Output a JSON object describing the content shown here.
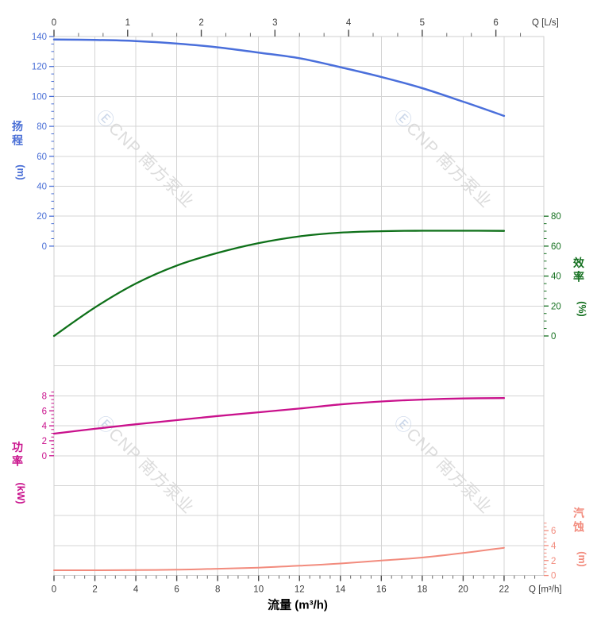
{
  "watermark": {
    "logo_char": "Ⓔ",
    "text": "CNP 南方泵业",
    "logo_color": "#ccd8ea",
    "text_color": "#dcdcdc"
  },
  "chart_data": {
    "type": "line",
    "title": "",
    "x_unit_bottom": "m³/h",
    "x_unit_top": "L/s",
    "x": [
      0,
      2,
      4,
      6,
      8,
      10,
      12,
      14,
      16,
      18,
      20,
      22
    ],
    "series": [
      {
        "name": "扬程",
        "axis": "head",
        "color": "#4a6fdb",
        "width": 2.5,
        "values": [
          138,
          137.7,
          137,
          135.3,
          132.8,
          129.3,
          125.5,
          119.5,
          113,
          105.5,
          96.5,
          87
        ]
      },
      {
        "name": "效率",
        "axis": "eff",
        "color": "#0e7019",
        "width": 2.3,
        "values": [
          0,
          19,
          35,
          47,
          55.5,
          62,
          66.5,
          69,
          70,
          70.3,
          70.3,
          70.2
        ]
      },
      {
        "name": "功率",
        "axis": "power",
        "color": "#c9118c",
        "width": 2.3,
        "values": [
          2.95,
          3.6,
          4.2,
          4.75,
          5.3,
          5.8,
          6.3,
          6.85,
          7.25,
          7.5,
          7.65,
          7.7
        ]
      },
      {
        "name": "汽蚀",
        "axis": "npsh",
        "color": "#f28b7d",
        "width": 2.0,
        "values": [
          0.7,
          0.7,
          0.72,
          0.78,
          0.9,
          1.05,
          1.3,
          1.6,
          2.0,
          2.4,
          3.0,
          3.7
        ]
      }
    ],
    "axes": {
      "top": {
        "unit_label": "Q [L/s]",
        "ticks": [
          0,
          1,
          2,
          3,
          4,
          5,
          6
        ],
        "minor_divisions": 3,
        "factor_to_bottom": 3.6,
        "color": "#3c3c3c"
      },
      "bottom": {
        "title": "流量 (m³/h)",
        "unit_label": "Q [m³/h]",
        "ticks": [
          0,
          2,
          4,
          6,
          8,
          10,
          12,
          14,
          16,
          18,
          20,
          22
        ],
        "minor": [
          0.5,
          23.5,
          0.5
        ],
        "range": [
          0,
          23.94
        ],
        "color": "#3c3c3c",
        "title_color": "#000000"
      },
      "head": {
        "title": "扬程",
        "unit": "(m)",
        "side": "left",
        "ticks": [
          0,
          20,
          40,
          60,
          80,
          100,
          120,
          140
        ],
        "minor": [
          5,
          135,
          5
        ],
        "range": [
          0,
          140
        ],
        "color": "#4a6fd6"
      },
      "eff": {
        "title": "效率",
        "unit": "(%)",
        "side": "right",
        "ticks": [
          0,
          20,
          40,
          60,
          80
        ],
        "minor": [
          5,
          75,
          5
        ],
        "range": [
          0,
          80
        ],
        "color": "#157020"
      },
      "power": {
        "title": "功率",
        "unit": "(kW)",
        "side": "left",
        "ticks": [
          0,
          2,
          4,
          6,
          8
        ],
        "minor": [
          0.5,
          8.5,
          0.5
        ],
        "range": [
          0,
          8
        ],
        "color": "#c9118c"
      },
      "npsh": {
        "title": "汽蚀",
        "unit": "(m)",
        "side": "right",
        "ticks": [
          0,
          2,
          4,
          6
        ],
        "minor": [
          0.5,
          7,
          0.5
        ],
        "range": [
          0,
          7
        ],
        "color": "#f28b7d"
      }
    },
    "grid": {
      "on": true,
      "color": "#d4d4d4"
    },
    "legend_position": "none"
  }
}
